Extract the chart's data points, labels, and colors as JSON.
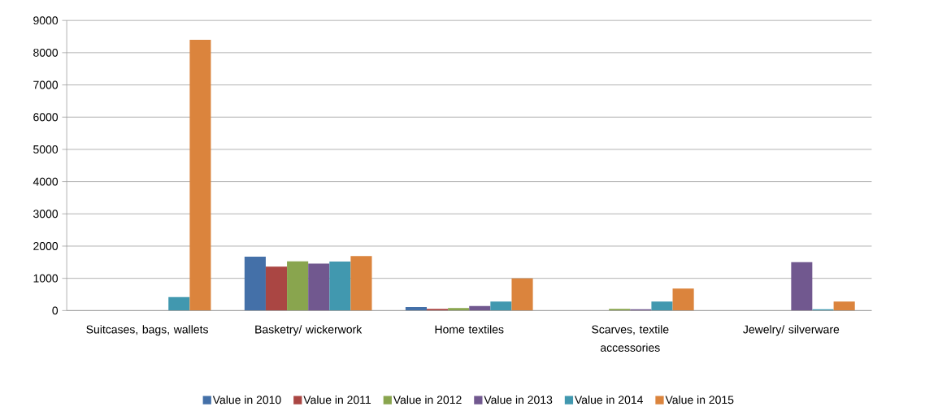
{
  "chart_data": {
    "type": "bar",
    "categories": [
      "Suitcases, bags, wallets",
      "Basketry/ wickerwork",
      "Home textiles",
      "Scarves, textile accessories",
      "Jewelry/ silverware"
    ],
    "series": [
      {
        "name": "Value in 2010",
        "color": "#4470a8",
        "values": [
          0,
          1670,
          110,
          null,
          0
        ]
      },
      {
        "name": "Value in 2011",
        "color": "#aa4643",
        "values": [
          0,
          1360,
          50,
          null,
          0
        ]
      },
      {
        "name": "Value in 2012",
        "color": "#89a54e",
        "values": [
          0,
          1530,
          80,
          50,
          null
        ]
      },
      {
        "name": "Value in 2013",
        "color": "#71588f",
        "values": [
          0,
          1460,
          140,
          40,
          1500
        ]
      },
      {
        "name": "Value in 2014",
        "color": "#4198af",
        "values": [
          420,
          1520,
          280,
          280,
          40
        ]
      },
      {
        "name": "Value in 2015",
        "color": "#db843d",
        "values": [
          8400,
          1690,
          1000,
          680,
          280
        ]
      }
    ],
    "ylim": [
      0,
      9000
    ],
    "yticks": [
      0,
      1000,
      2000,
      3000,
      4000,
      5000,
      6000,
      7000,
      8000,
      9000
    ],
    "grid": "y",
    "legend": "bottom"
  }
}
